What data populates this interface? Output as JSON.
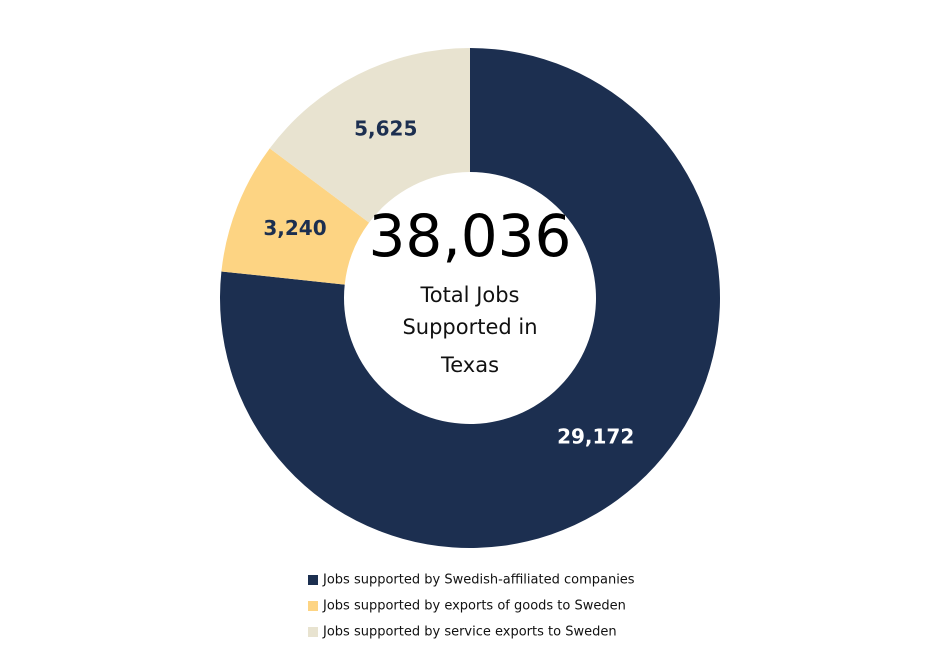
{
  "chart_data": {
    "type": "donut",
    "center_value": "38,036",
    "center_label": [
      "Total Jobs",
      "Supported in",
      "Texas"
    ],
    "categories": [
      "Jobs supported by Swedish-affiliated companies",
      "Jobs supported by exports of goods to Sweden",
      "Jobs supported by service exports to Sweden"
    ],
    "values": [
      29172,
      3240,
      5625
    ],
    "value_labels": [
      "29,172",
      "3,240",
      "5,625"
    ],
    "colors": [
      "#1c2f50",
      "#fdd483",
      "#e8e3d0"
    ]
  }
}
